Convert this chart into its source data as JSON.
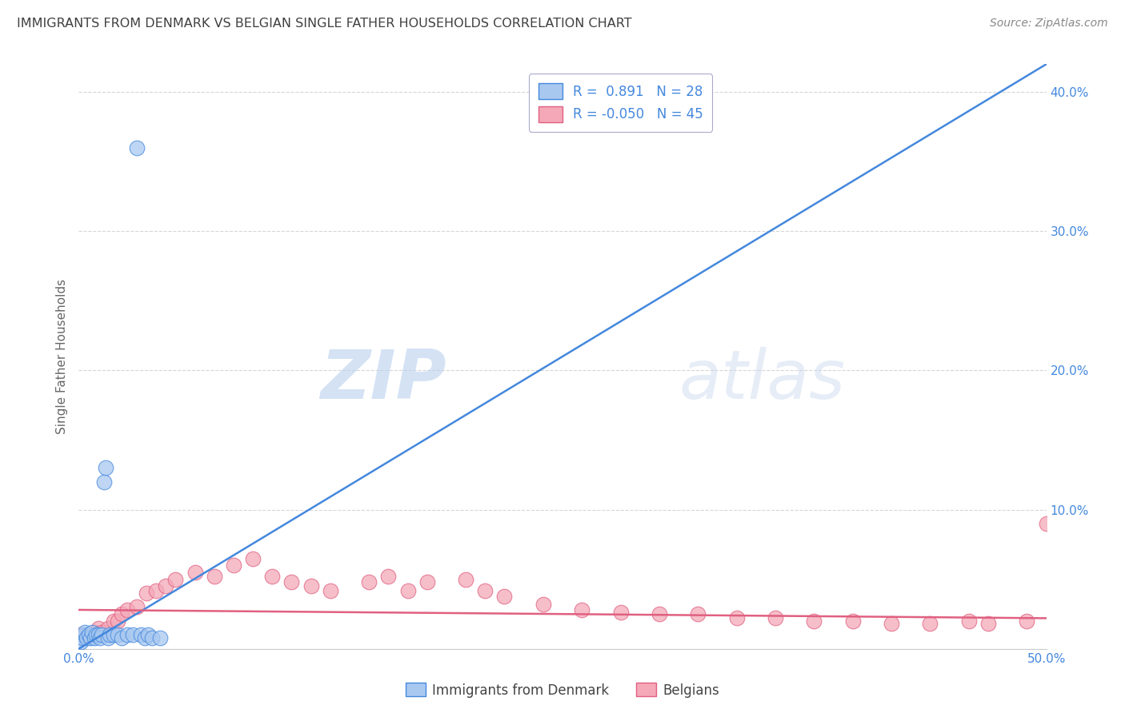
{
  "title": "IMMIGRANTS FROM DENMARK VS BELGIAN SINGLE FATHER HOUSEHOLDS CORRELATION CHART",
  "source": "Source: ZipAtlas.com",
  "ylabel": "Single Father Households",
  "xlim": [
    0.0,
    0.5
  ],
  "ylim": [
    0.0,
    0.42
  ],
  "r_denmark": 0.891,
  "n_denmark": 28,
  "r_belgians": -0.05,
  "n_belgians": 45,
  "series1_color": "#a8c8f0",
  "series2_color": "#f4a8b8",
  "line1_color": "#4488dd",
  "line2_color": "#e06080",
  "legend_label1": "Immigrants from Denmark",
  "legend_label2": "Belgians",
  "watermark_zip": "ZIP",
  "watermark_atlas": "atlas",
  "background_color": "#ffffff",
  "grid_color": "#cccccc",
  "title_color": "#404040",
  "tick_color": "#4488dd",
  "denmark_x": [
    0.001,
    0.002,
    0.003,
    0.003,
    0.004,
    0.005,
    0.006,
    0.007,
    0.008,
    0.009,
    0.01,
    0.011,
    0.012,
    0.013,
    0.014,
    0.015,
    0.016,
    0.018,
    0.02,
    0.022,
    0.025,
    0.028,
    0.03,
    0.032,
    0.034,
    0.036,
    0.038,
    0.042
  ],
  "denmark_y": [
    0.005,
    0.008,
    0.01,
    0.012,
    0.008,
    0.01,
    0.008,
    0.012,
    0.008,
    0.01,
    0.01,
    0.008,
    0.01,
    0.12,
    0.13,
    0.008,
    0.01,
    0.01,
    0.01,
    0.008,
    0.01,
    0.01,
    0.36,
    0.01,
    0.008,
    0.01,
    0.008,
    0.008
  ],
  "belgians_x": [
    0.001,
    0.005,
    0.008,
    0.01,
    0.012,
    0.015,
    0.018,
    0.02,
    0.022,
    0.025,
    0.03,
    0.035,
    0.04,
    0.045,
    0.05,
    0.06,
    0.07,
    0.08,
    0.09,
    0.1,
    0.11,
    0.12,
    0.13,
    0.15,
    0.16,
    0.17,
    0.18,
    0.2,
    0.21,
    0.22,
    0.24,
    0.26,
    0.28,
    0.3,
    0.32,
    0.34,
    0.36,
    0.38,
    0.4,
    0.42,
    0.44,
    0.46,
    0.47,
    0.49,
    0.5
  ],
  "belgians_y": [
    0.01,
    0.01,
    0.012,
    0.015,
    0.012,
    0.015,
    0.02,
    0.02,
    0.025,
    0.028,
    0.03,
    0.04,
    0.042,
    0.045,
    0.05,
    0.055,
    0.052,
    0.06,
    0.065,
    0.052,
    0.048,
    0.045,
    0.042,
    0.048,
    0.052,
    0.042,
    0.048,
    0.05,
    0.042,
    0.038,
    0.032,
    0.028,
    0.026,
    0.025,
    0.025,
    0.022,
    0.022,
    0.02,
    0.02,
    0.018,
    0.018,
    0.02,
    0.018,
    0.02,
    0.09
  ],
  "dk_line_x": [
    0.0,
    0.5
  ],
  "dk_line_y": [
    0.0,
    0.42
  ],
  "bel_line_x": [
    0.0,
    0.5
  ],
  "bel_line_y": [
    0.028,
    0.022
  ]
}
